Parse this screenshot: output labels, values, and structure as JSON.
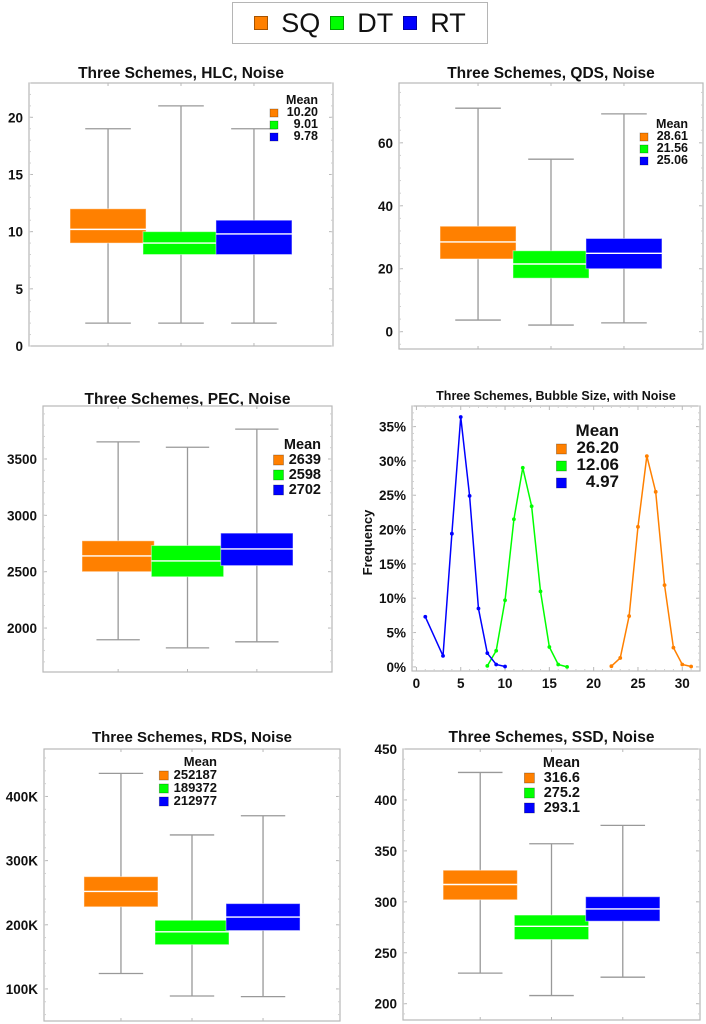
{
  "legend": {
    "items": [
      {
        "label": "SQ",
        "color": "#ff8000"
      },
      {
        "label": "DT",
        "color": "#00ff00"
      },
      {
        "label": "RT",
        "color": "#0000ff"
      }
    ]
  },
  "colors": {
    "SQ": "#ff8000",
    "DT": "#00ff00",
    "RT": "#0000ff",
    "frame": "#b8b8b8",
    "whisker": "#999999",
    "median": "#ffffff"
  },
  "chart_data": [
    {
      "type": "box",
      "id": "hlc",
      "title": "Three Schemes, HLC, Noise",
      "xlabel": "",
      "ylabel": "",
      "ylim": [
        0,
        23
      ],
      "yticks": [
        0,
        5,
        10,
        15,
        20
      ],
      "ytick_labels": [
        "0",
        "5",
        "10",
        "15",
        "20"
      ],
      "grid": false,
      "legend_title": "Mean",
      "legend_placement": "top-right",
      "series": [
        {
          "name": "SQ",
          "min": 2,
          "q1": 9,
          "median": 10.2,
          "q3": 12,
          "max": 19,
          "mean_label": "10.20"
        },
        {
          "name": "DT",
          "min": 2,
          "q1": 8,
          "median": 9,
          "q3": 10,
          "max": 21,
          "mean_label": "9.01"
        },
        {
          "name": "RT",
          "min": 2,
          "q1": 8,
          "median": 9.8,
          "q3": 11,
          "max": 19,
          "mean_label": "9.78"
        }
      ]
    },
    {
      "type": "box",
      "id": "qds",
      "title": "Three Schemes, QDS, Noise",
      "xlabel": "",
      "ylabel": "",
      "ylim": [
        -5.5,
        79
      ],
      "yticks": [
        0,
        20,
        40,
        60
      ],
      "ytick_labels": [
        "0",
        "20",
        "40",
        "60"
      ],
      "grid": false,
      "legend_title": "Mean",
      "legend_placement": "top-right",
      "series": [
        {
          "name": "SQ",
          "min": 3.7,
          "q1": 23.1,
          "median": 28.5,
          "q3": 33.5,
          "max": 71,
          "mean_label": "28.61"
        },
        {
          "name": "DT",
          "min": 2.1,
          "q1": 17,
          "median": 21.5,
          "q3": 25.7,
          "max": 54.8,
          "mean_label": "21.56"
        },
        {
          "name": "RT",
          "min": 2.8,
          "q1": 20,
          "median": 24.9,
          "q3": 29.6,
          "max": 69.2,
          "mean_label": "25.06"
        }
      ]
    },
    {
      "type": "box",
      "id": "pec",
      "title": "Three Schemes, PEC, Noise",
      "xlabel": "",
      "ylabel": "",
      "ylim": [
        1610,
        3970
      ],
      "yticks": [
        2000,
        2500,
        3000,
        3500
      ],
      "ytick_labels": [
        "2000",
        "2500",
        "3000",
        "3500"
      ],
      "grid": false,
      "legend_title": "Mean",
      "legend_placement": "top-right",
      "series": [
        {
          "name": "SQ",
          "min": 1896,
          "q1": 2500,
          "median": 2640,
          "q3": 2774,
          "max": 3652,
          "mean_label": "2639"
        },
        {
          "name": "DT",
          "min": 1824,
          "q1": 2455,
          "median": 2595,
          "q3": 2732,
          "max": 3604,
          "mean_label": "2598"
        },
        {
          "name": "RT",
          "min": 1878,
          "q1": 2554,
          "median": 2702,
          "q3": 2842,
          "max": 3765,
          "mean_label": "2702"
        }
      ]
    },
    {
      "type": "line",
      "id": "bubble",
      "title": "Three Schemes, Bubble Size, with Noise",
      "xlabel": "",
      "ylabel": "Frequency",
      "xlim": [
        -0.5,
        32
      ],
      "ylim": [
        -0.6,
        38
      ],
      "xticks": [
        0,
        5,
        10,
        15,
        20,
        25,
        30
      ],
      "xtick_labels": [
        "0",
        "5",
        "10",
        "15",
        "20",
        "25",
        "30"
      ],
      "yticks": [
        0,
        5,
        10,
        15,
        20,
        25,
        30,
        35
      ],
      "ytick_labels": [
        "0%",
        "5%",
        "10%",
        "15%",
        "20%",
        "25%",
        "30%",
        "35%"
      ],
      "grid": false,
      "legend_title": "Mean",
      "legend_placement": "top-center",
      "series": [
        {
          "name": "SQ",
          "mean_label": "26.20",
          "x": [
            22,
            23,
            24,
            25,
            26,
            27,
            28,
            29,
            30,
            31
          ],
          "y": [
            0.1,
            1.3,
            7.4,
            20.4,
            30.7,
            25.5,
            11.9,
            2.8,
            0.35,
            0.05
          ]
        },
        {
          "name": "DT",
          "mean_label": "12.06",
          "x": [
            8,
            9,
            10,
            11,
            12,
            13,
            14,
            15,
            16,
            17
          ],
          "y": [
            0.15,
            2.35,
            9.7,
            21.5,
            29.0,
            23.4,
            11.0,
            2.9,
            0.35,
            0.0
          ]
        },
        {
          "name": "RT",
          "mean_label": "4.97",
          "x": [
            1,
            3,
            4,
            5,
            6,
            7,
            8,
            9,
            10
          ],
          "y": [
            7.3,
            1.6,
            19.4,
            36.4,
            24.9,
            8.5,
            2.0,
            0.35,
            0.05
          ]
        }
      ]
    },
    {
      "type": "box",
      "id": "rds",
      "title": "Three Schemes, RDS, Noise",
      "xlabel": "",
      "ylabel": "",
      "ylim": [
        50000,
        474000
      ],
      "yticks": [
        100000,
        200000,
        300000,
        400000
      ],
      "ytick_labels": [
        "100K",
        "200K",
        "300K",
        "400K"
      ],
      "grid": false,
      "legend_title": "Mean",
      "legend_placement": "top-center",
      "series": [
        {
          "name": "SQ",
          "min": 124000,
          "q1": 228000,
          "median": 252000,
          "q3": 275000,
          "max": 436000,
          "mean_label": "252187"
        },
        {
          "name": "DT",
          "min": 89000,
          "q1": 169000,
          "median": 189000,
          "q3": 207000,
          "max": 340000,
          "mean_label": "189372"
        },
        {
          "name": "RT",
          "min": 88000,
          "q1": 191000,
          "median": 212000,
          "q3": 233000,
          "max": 370000,
          "mean_label": "212977"
        }
      ]
    },
    {
      "type": "box",
      "id": "ssd",
      "title": "Three Schemes, SSD, Noise",
      "xlabel": "",
      "ylabel": "",
      "ylim": [
        184,
        450
      ],
      "yticks": [
        200,
        250,
        300,
        350,
        400,
        450
      ],
      "ytick_labels": [
        "200",
        "250",
        "300",
        "350",
        "400",
        "450"
      ],
      "grid": false,
      "legend_title": "Mean",
      "legend_placement": "top-center",
      "series": [
        {
          "name": "SQ",
          "min": 230,
          "q1": 302,
          "median": 317,
          "q3": 331,
          "max": 427,
          "mean_label": "316.6"
        },
        {
          "name": "DT",
          "min": 208,
          "q1": 263,
          "median": 276,
          "q3": 287,
          "max": 357,
          "mean_label": "275.2"
        },
        {
          "name": "RT",
          "min": 226,
          "q1": 281,
          "median": 293,
          "q3": 305,
          "max": 375,
          "mean_label": "293.1"
        }
      ]
    }
  ]
}
